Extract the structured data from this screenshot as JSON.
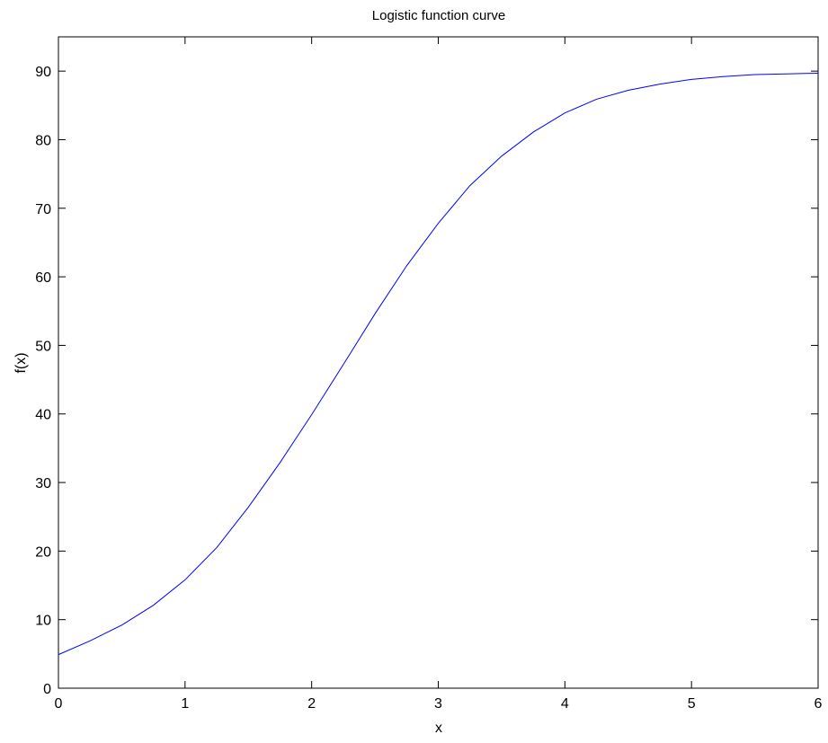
{
  "chart_data": {
    "type": "line",
    "title": "Logistic function curve",
    "xlabel": "x",
    "ylabel": "f(x)",
    "xlim": [
      0,
      6
    ],
    "ylim": [
      0,
      95
    ],
    "xticks": [
      0,
      1,
      2,
      3,
      4,
      5,
      6
    ],
    "yticks": [
      0,
      10,
      20,
      30,
      40,
      50,
      60,
      70,
      80,
      90
    ],
    "grid": false,
    "legend": "none",
    "series": [
      {
        "color": "#0000ff",
        "x": [
          0,
          0.25,
          0.5,
          0.75,
          1,
          1.25,
          1.5,
          1.75,
          2,
          2.25,
          2.5,
          2.75,
          3,
          3.25,
          3.5,
          3.75,
          4,
          4.25,
          4.5,
          4.75,
          5,
          5.25,
          5.5,
          5.75,
          6
        ],
        "y": [
          4.9,
          6.9,
          9.2,
          12.1,
          15.8,
          20.5,
          26.4,
          32.9,
          39.9,
          47.2,
          54.6,
          61.6,
          67.8,
          73.3,
          77.6,
          81.1,
          83.9,
          85.9,
          87.2,
          88.1,
          88.8,
          89.2,
          89.5,
          89.6,
          89.7
        ]
      }
    ]
  }
}
